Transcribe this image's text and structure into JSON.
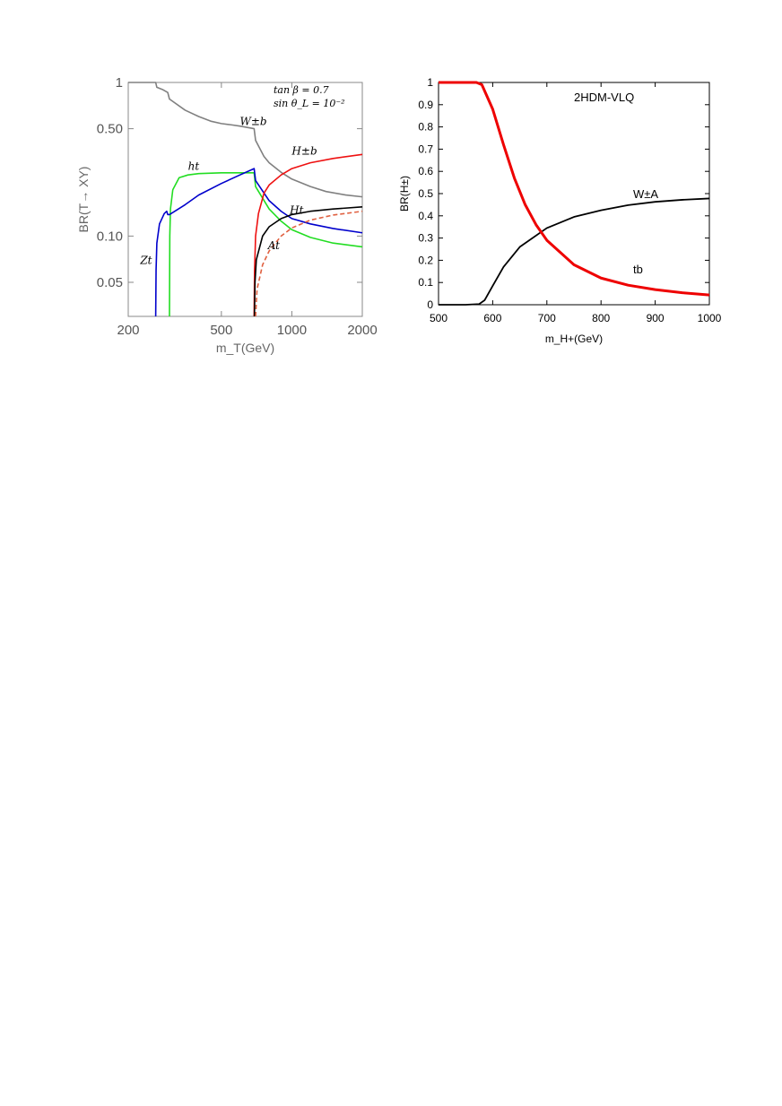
{
  "chart_data": [
    {
      "type": "line",
      "xscale": "log",
      "yscale": "log",
      "xlim": [
        200,
        2000
      ],
      "ylim": [
        0.03,
        1
      ],
      "xlabel": "m_T(GeV)",
      "ylabel": "BR(T→ XY)",
      "xticks": [
        200,
        500,
        1000,
        2000
      ],
      "xtick_labels": [
        "200",
        "500",
        "1000",
        "2000"
      ],
      "yticks": [
        0.05,
        0.1,
        0.5,
        1
      ],
      "ytick_labels": [
        "0.05",
        "0.10",
        "0.50",
        "1"
      ],
      "annotation": {
        "line1": "tan β = 0.7",
        "line2": "sin θ_L = 10⁻²"
      },
      "grid": false,
      "series": [
        {
          "name": "W±b",
          "color": "#808080",
          "style": "solid",
          "points": [
            [
              200,
              1
            ],
            [
              262,
              1
            ],
            [
              265,
              0.93
            ],
            [
              280,
              0.9
            ],
            [
              295,
              0.86
            ],
            [
              300,
              0.78
            ],
            [
              350,
              0.66
            ],
            [
              400,
              0.6
            ],
            [
              450,
              0.56
            ],
            [
              500,
              0.54
            ],
            [
              550,
              0.53
            ],
            [
              600,
              0.52
            ],
            [
              690,
              0.5
            ],
            [
              700,
              0.42
            ],
            [
              760,
              0.33
            ],
            [
              800,
              0.3
            ],
            [
              900,
              0.26
            ],
            [
              1000,
              0.235
            ],
            [
              1200,
              0.21
            ],
            [
              1400,
              0.195
            ],
            [
              1700,
              0.185
            ],
            [
              2000,
              0.18
            ]
          ]
        },
        {
          "name": "ht",
          "color": "#22dd22",
          "style": "solid",
          "points": [
            [
              300,
              0.03
            ],
            [
              301,
              0.1
            ],
            [
              303,
              0.15
            ],
            [
              310,
              0.2
            ],
            [
              330,
              0.24
            ],
            [
              360,
              0.25
            ],
            [
              400,
              0.255
            ],
            [
              500,
              0.258
            ],
            [
              600,
              0.258
            ],
            [
              690,
              0.258
            ],
            [
              700,
              0.21
            ],
            [
              800,
              0.15
            ],
            [
              900,
              0.125
            ],
            [
              1000,
              0.11
            ],
            [
              1200,
              0.098
            ],
            [
              1500,
              0.09
            ],
            [
              2000,
              0.085
            ]
          ]
        },
        {
          "name": "Zt",
          "color": "#0000cc",
          "style": "solid",
          "points": [
            [
              262,
              0.03
            ],
            [
              263,
              0.06
            ],
            [
              265,
              0.09
            ],
            [
              272,
              0.12
            ],
            [
              285,
              0.14
            ],
            [
              292,
              0.145
            ],
            [
              295,
              0.138
            ],
            [
              300,
              0.138
            ],
            [
              350,
              0.16
            ],
            [
              400,
              0.185
            ],
            [
              500,
              0.22
            ],
            [
              600,
              0.25
            ],
            [
              690,
              0.275
            ],
            [
              700,
              0.23
            ],
            [
              800,
              0.17
            ],
            [
              900,
              0.145
            ],
            [
              1000,
              0.13
            ],
            [
              1200,
              0.12
            ],
            [
              1500,
              0.112
            ],
            [
              2000,
              0.105
            ]
          ]
        },
        {
          "name": "H±b",
          "color": "#ee1111",
          "style": "solid",
          "points": [
            [
              690,
              0.03
            ],
            [
              693,
              0.06
            ],
            [
              700,
              0.1
            ],
            [
              720,
              0.14
            ],
            [
              760,
              0.19
            ],
            [
              800,
              0.215
            ],
            [
              900,
              0.25
            ],
            [
              1000,
              0.275
            ],
            [
              1200,
              0.3
            ],
            [
              1500,
              0.32
            ],
            [
              2000,
              0.34
            ]
          ]
        },
        {
          "name": "Ht",
          "color": "#000000",
          "style": "solid",
          "points": [
            [
              692,
              0.03
            ],
            [
              696,
              0.05
            ],
            [
              705,
              0.07
            ],
            [
              750,
              0.1
            ],
            [
              800,
              0.115
            ],
            [
              900,
              0.13
            ],
            [
              1000,
              0.138
            ],
            [
              1200,
              0.145
            ],
            [
              1500,
              0.15
            ],
            [
              2000,
              0.155
            ]
          ]
        },
        {
          "name": "At",
          "color": "#e06040",
          "style": "dashed",
          "points": [
            [
              700,
              0.03
            ],
            [
              710,
              0.045
            ],
            [
              750,
              0.065
            ],
            [
              800,
              0.08
            ],
            [
              900,
              0.1
            ],
            [
              1000,
              0.113
            ],
            [
              1200,
              0.127
            ],
            [
              1500,
              0.137
            ],
            [
              2000,
              0.145
            ]
          ]
        }
      ],
      "labels": {
        "wb": "W±b",
        "ht": "ht",
        "zt": "Zt",
        "hb": "H±b",
        "Ht": "Ht",
        "At": "At"
      }
    },
    {
      "type": "line",
      "xlim": [
        500,
        1000
      ],
      "ylim": [
        0,
        1
      ],
      "xlabel": "m_H+(GeV)",
      "ylabel": "BR(H±)",
      "title": "2HDM-VLQ",
      "xticks": [
        500,
        600,
        700,
        800,
        900,
        1000
      ],
      "yticks": [
        0,
        0.1,
        0.2,
        0.3,
        0.4,
        0.5,
        0.6,
        0.7,
        0.8,
        0.9,
        1
      ],
      "grid": false,
      "series": [
        {
          "name": "W±A",
          "color": "#000000",
          "points": [
            [
              500,
              0.0
            ],
            [
              550,
              0.0
            ],
            [
              575,
              0.003
            ],
            [
              585,
              0.02
            ],
            [
              600,
              0.085
            ],
            [
              620,
              0.17
            ],
            [
              650,
              0.26
            ],
            [
              700,
              0.345
            ],
            [
              750,
              0.395
            ],
            [
              800,
              0.425
            ],
            [
              850,
              0.448
            ],
            [
              900,
              0.463
            ],
            [
              950,
              0.472
            ],
            [
              1000,
              0.478
            ]
          ]
        },
        {
          "name": "tb",
          "color": "#ee0000",
          "points": [
            [
              500,
              1.0
            ],
            [
              570,
              1.0
            ],
            [
              580,
              0.99
            ],
            [
              600,
              0.88
            ],
            [
              620,
              0.72
            ],
            [
              640,
              0.57
            ],
            [
              660,
              0.45
            ],
            [
              680,
              0.36
            ],
            [
              700,
              0.29
            ],
            [
              750,
              0.18
            ],
            [
              800,
              0.12
            ],
            [
              850,
              0.088
            ],
            [
              900,
              0.068
            ],
            [
              950,
              0.054
            ],
            [
              1000,
              0.044
            ]
          ]
        }
      ],
      "labels": {
        "wa": "W±A",
        "tb": "tb"
      }
    }
  ]
}
